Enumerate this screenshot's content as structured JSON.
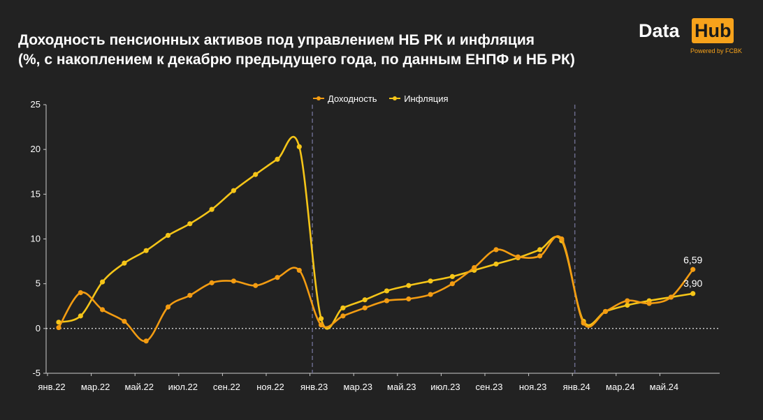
{
  "title_line1": "Доходность пенсионных активов под управлением НБ РК и инфляция",
  "title_line2": "(%, с накоплением к декабрю предыдущего года, по данным ЕНПФ и НБ РК)",
  "logo": {
    "data": "Data",
    "hub": "Hub",
    "powered": "Powered by FCBK"
  },
  "colors": {
    "background": "#222222",
    "yield": "#f39c12",
    "inflation": "#f5c518",
    "axis": "#cccccc",
    "divider": "#6a6a8a"
  },
  "chart_data": {
    "type": "line",
    "x_tick_labels": [
      "янв.22",
      "мар.22",
      "май.22",
      "июл.22",
      "сен.22",
      "ноя.22",
      "янв.23",
      "мар.23",
      "май.23",
      "июл.23",
      "сен.23",
      "ноя.23",
      "янв.24",
      "мар.24",
      "май.24"
    ],
    "x_tick_month_index": [
      0,
      2,
      4,
      6,
      8,
      10,
      12,
      14,
      16,
      18,
      20,
      22,
      24,
      26,
      28
    ],
    "y_ticks": [
      -5,
      0,
      5,
      10,
      15,
      20,
      25
    ],
    "ylim": [
      -5,
      25
    ],
    "zero_line": "dotted",
    "year_dividers": [
      11.6,
      23.6
    ],
    "legend_position": "top-center",
    "series": [
      {
        "name": "Доходность",
        "color": "#f39c12",
        "values": [
          0.1,
          4.0,
          2.1,
          0.8,
          -1.4,
          2.4,
          3.7,
          5.1,
          5.3,
          4.8,
          5.7,
          6.5,
          0.4,
          1.4,
          2.3,
          3.1,
          3.3,
          3.8,
          5.0,
          6.8,
          8.8,
          8.0,
          8.1,
          10.0,
          0.6,
          1.9,
          3.1,
          2.8,
          3.5,
          6.59
        ],
        "last_label": "6,59"
      },
      {
        "name": "Инфляция",
        "color": "#f5c518",
        "values": [
          0.7,
          1.4,
          5.2,
          7.3,
          8.7,
          10.4,
          11.7,
          13.3,
          15.4,
          17.2,
          18.9,
          20.3,
          1.1,
          2.3,
          3.2,
          4.2,
          4.8,
          5.3,
          5.8,
          6.5,
          7.2,
          7.9,
          8.8,
          9.8,
          0.8,
          1.9,
          2.6,
          3.1,
          3.5,
          3.9
        ],
        "last_label": "3,90"
      }
    ]
  }
}
